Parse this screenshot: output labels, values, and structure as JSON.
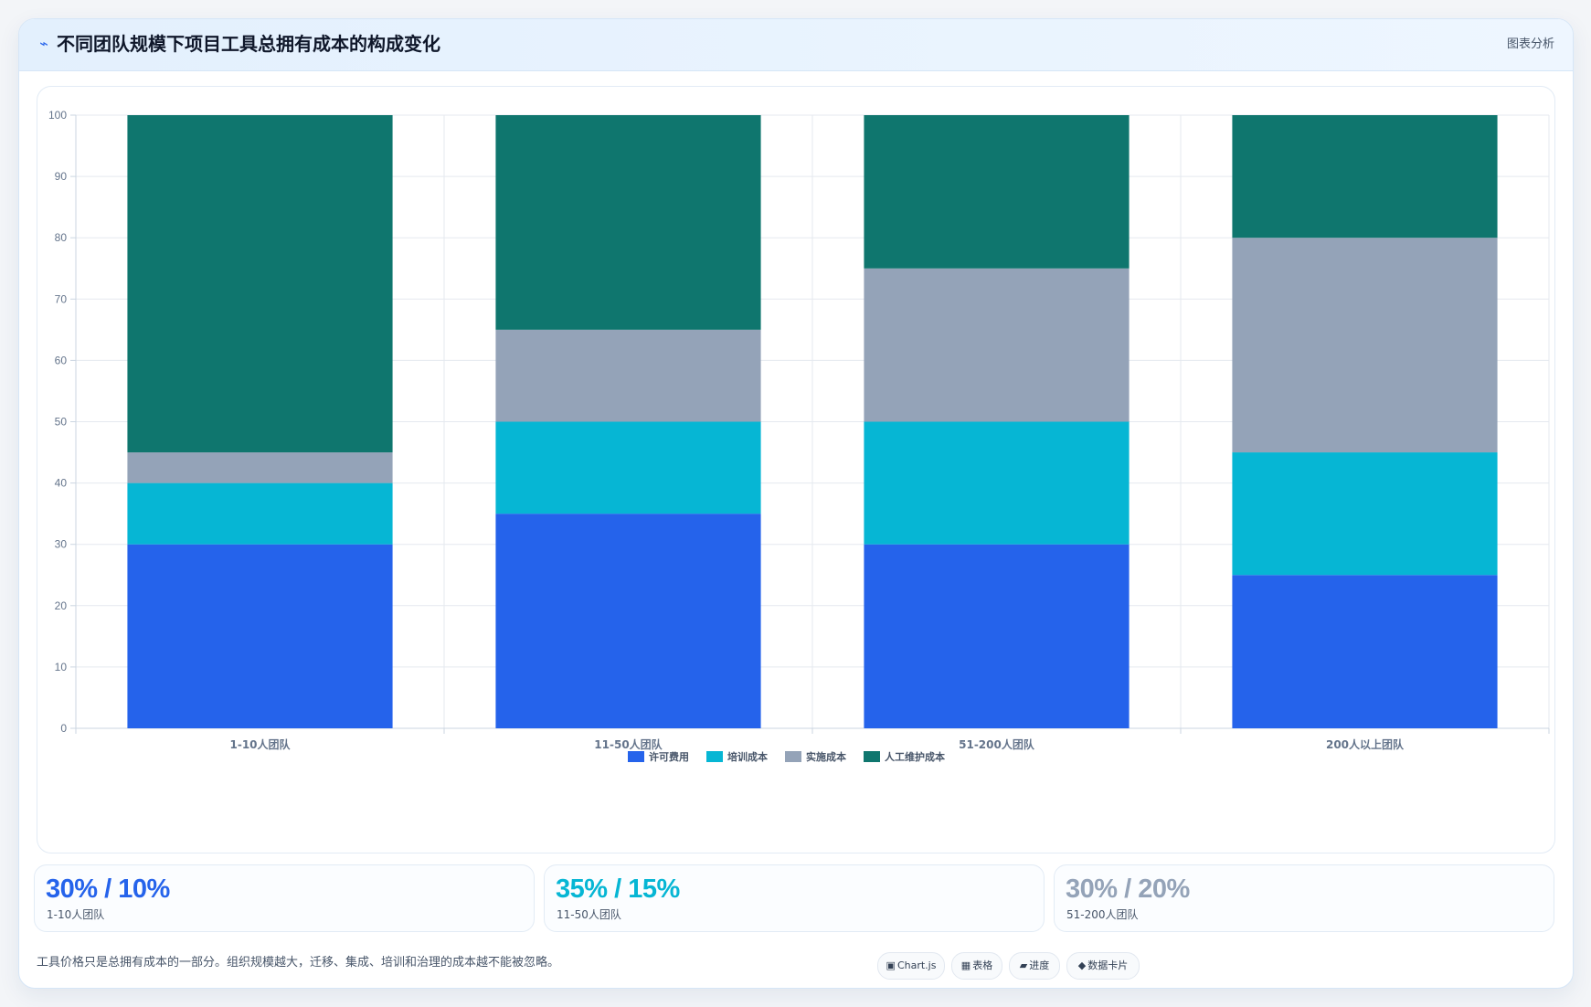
{
  "header": {
    "icon": "lightning-icon",
    "title": "不同团队规模下项目工具总拥有成本的构成变化",
    "tag": "图表分析"
  },
  "chart_data": {
    "type": "bar",
    "stacked": true,
    "categories": [
      "1-10人团队",
      "11-50人团队",
      "51-200人团队",
      "200人以上团队"
    ],
    "series": [
      {
        "name": "许可费用",
        "color": "#2563eb",
        "values": [
          30,
          35,
          30,
          25
        ]
      },
      {
        "name": "培训成本",
        "color": "#06b6d4",
        "values": [
          10,
          15,
          20,
          20
        ]
      },
      {
        "name": "实施成本",
        "color": "#94a3b8",
        "values": [
          5,
          15,
          25,
          35
        ]
      },
      {
        "name": "人工维护成本",
        "color": "#0f766e",
        "values": [
          55,
          35,
          25,
          20
        ]
      }
    ],
    "ylim": [
      0,
      100
    ],
    "yticks": [
      0,
      10,
      20,
      30,
      40,
      50,
      60,
      70,
      80,
      90,
      100
    ],
    "grid": true,
    "legend_position": "bottom"
  },
  "kpis": [
    {
      "value": "30% / 10%",
      "label": "1-10人团队",
      "color": "#2563eb"
    },
    {
      "value": "35% / 15%",
      "label": "11-50人团队",
      "color": "#06b6d4"
    },
    {
      "value": "30% / 20%",
      "label": "51-200人团队",
      "color": "#94a3b8"
    }
  ],
  "footer": {
    "note": "工具价格只是总拥有成本的一部分。组织规模越大，迁移、集成、培训和治理的成本越不能被忽略。",
    "chips": [
      {
        "icon": "chart-icon",
        "glyph": "▣",
        "label": "Chart.js"
      },
      {
        "icon": "table-icon",
        "glyph": "▦",
        "label": "表格"
      },
      {
        "icon": "progress-icon",
        "glyph": "▰",
        "label": "进度"
      },
      {
        "icon": "diamond-icon",
        "glyph": "◆",
        "label": "数据卡片"
      }
    ]
  }
}
